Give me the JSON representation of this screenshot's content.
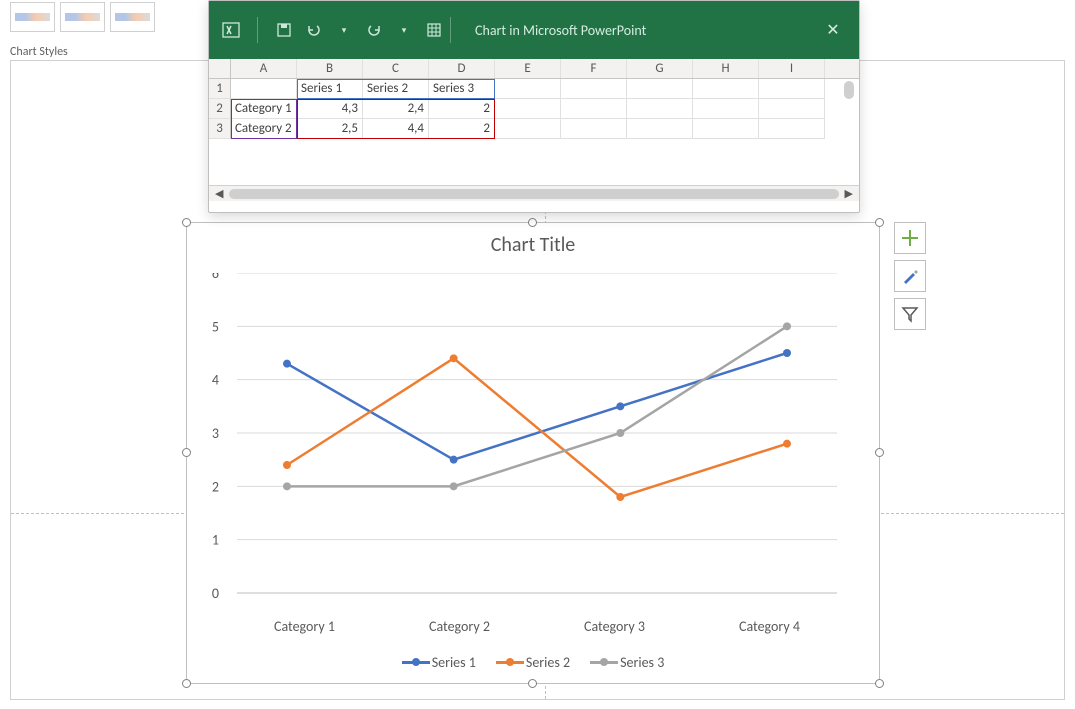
{
  "ribbon": {
    "label": "Chart Styles"
  },
  "excel_window": {
    "title": "Chart in Microsoft PowerPoint",
    "columns": [
      "A",
      "B",
      "C",
      "D",
      "E",
      "F",
      "G",
      "H",
      "I"
    ],
    "rows": [
      {
        "n": "1",
        "cells": [
          "",
          "Series 1",
          "Series 2",
          "Series 3",
          "",
          "",
          "",
          "",
          ""
        ]
      },
      {
        "n": "2",
        "cells": [
          "Category 1",
          "4,3",
          "2,4",
          "2",
          "",
          "",
          "",
          "",
          ""
        ]
      },
      {
        "n": "3",
        "cells": [
          "Category 2",
          "2,5",
          "4,4",
          "2",
          "",
          "",
          "",
          "",
          ""
        ]
      }
    ],
    "selection": {
      "top_row": 1,
      "left_col": "B",
      "bottom_row": 3,
      "right_col": "D"
    },
    "titlebar_bg": "#217346"
  },
  "chart": {
    "title": "Chart Title",
    "type": "line",
    "categories": [
      "Category 1",
      "Category 2",
      "Category 3",
      "Category 4"
    ],
    "series": [
      {
        "name": "Series 1",
        "color": "#4472c4",
        "values": [
          4.3,
          2.5,
          3.5,
          4.5
        ]
      },
      {
        "name": "Series 2",
        "color": "#ed7d31",
        "values": [
          2.4,
          4.4,
          1.8,
          2.8
        ]
      },
      {
        "name": "Series 3",
        "color": "#a5a5a5",
        "values": [
          2.0,
          2.0,
          3.0,
          5.0
        ]
      }
    ],
    "ylim": [
      0,
      6
    ],
    "ytick_step": 1,
    "grid_color": "#d9d9d9",
    "axis_color": "#bfbfbf",
    "label_color": "#595959",
    "line_width": 2.5,
    "marker_radius": 4,
    "title_fontsize": 20,
    "label_fontsize": 14
  },
  "side_tools": {
    "plus_color": "#70ad47",
    "brush_color": "#4472c4",
    "funnel_color": "#595959"
  }
}
